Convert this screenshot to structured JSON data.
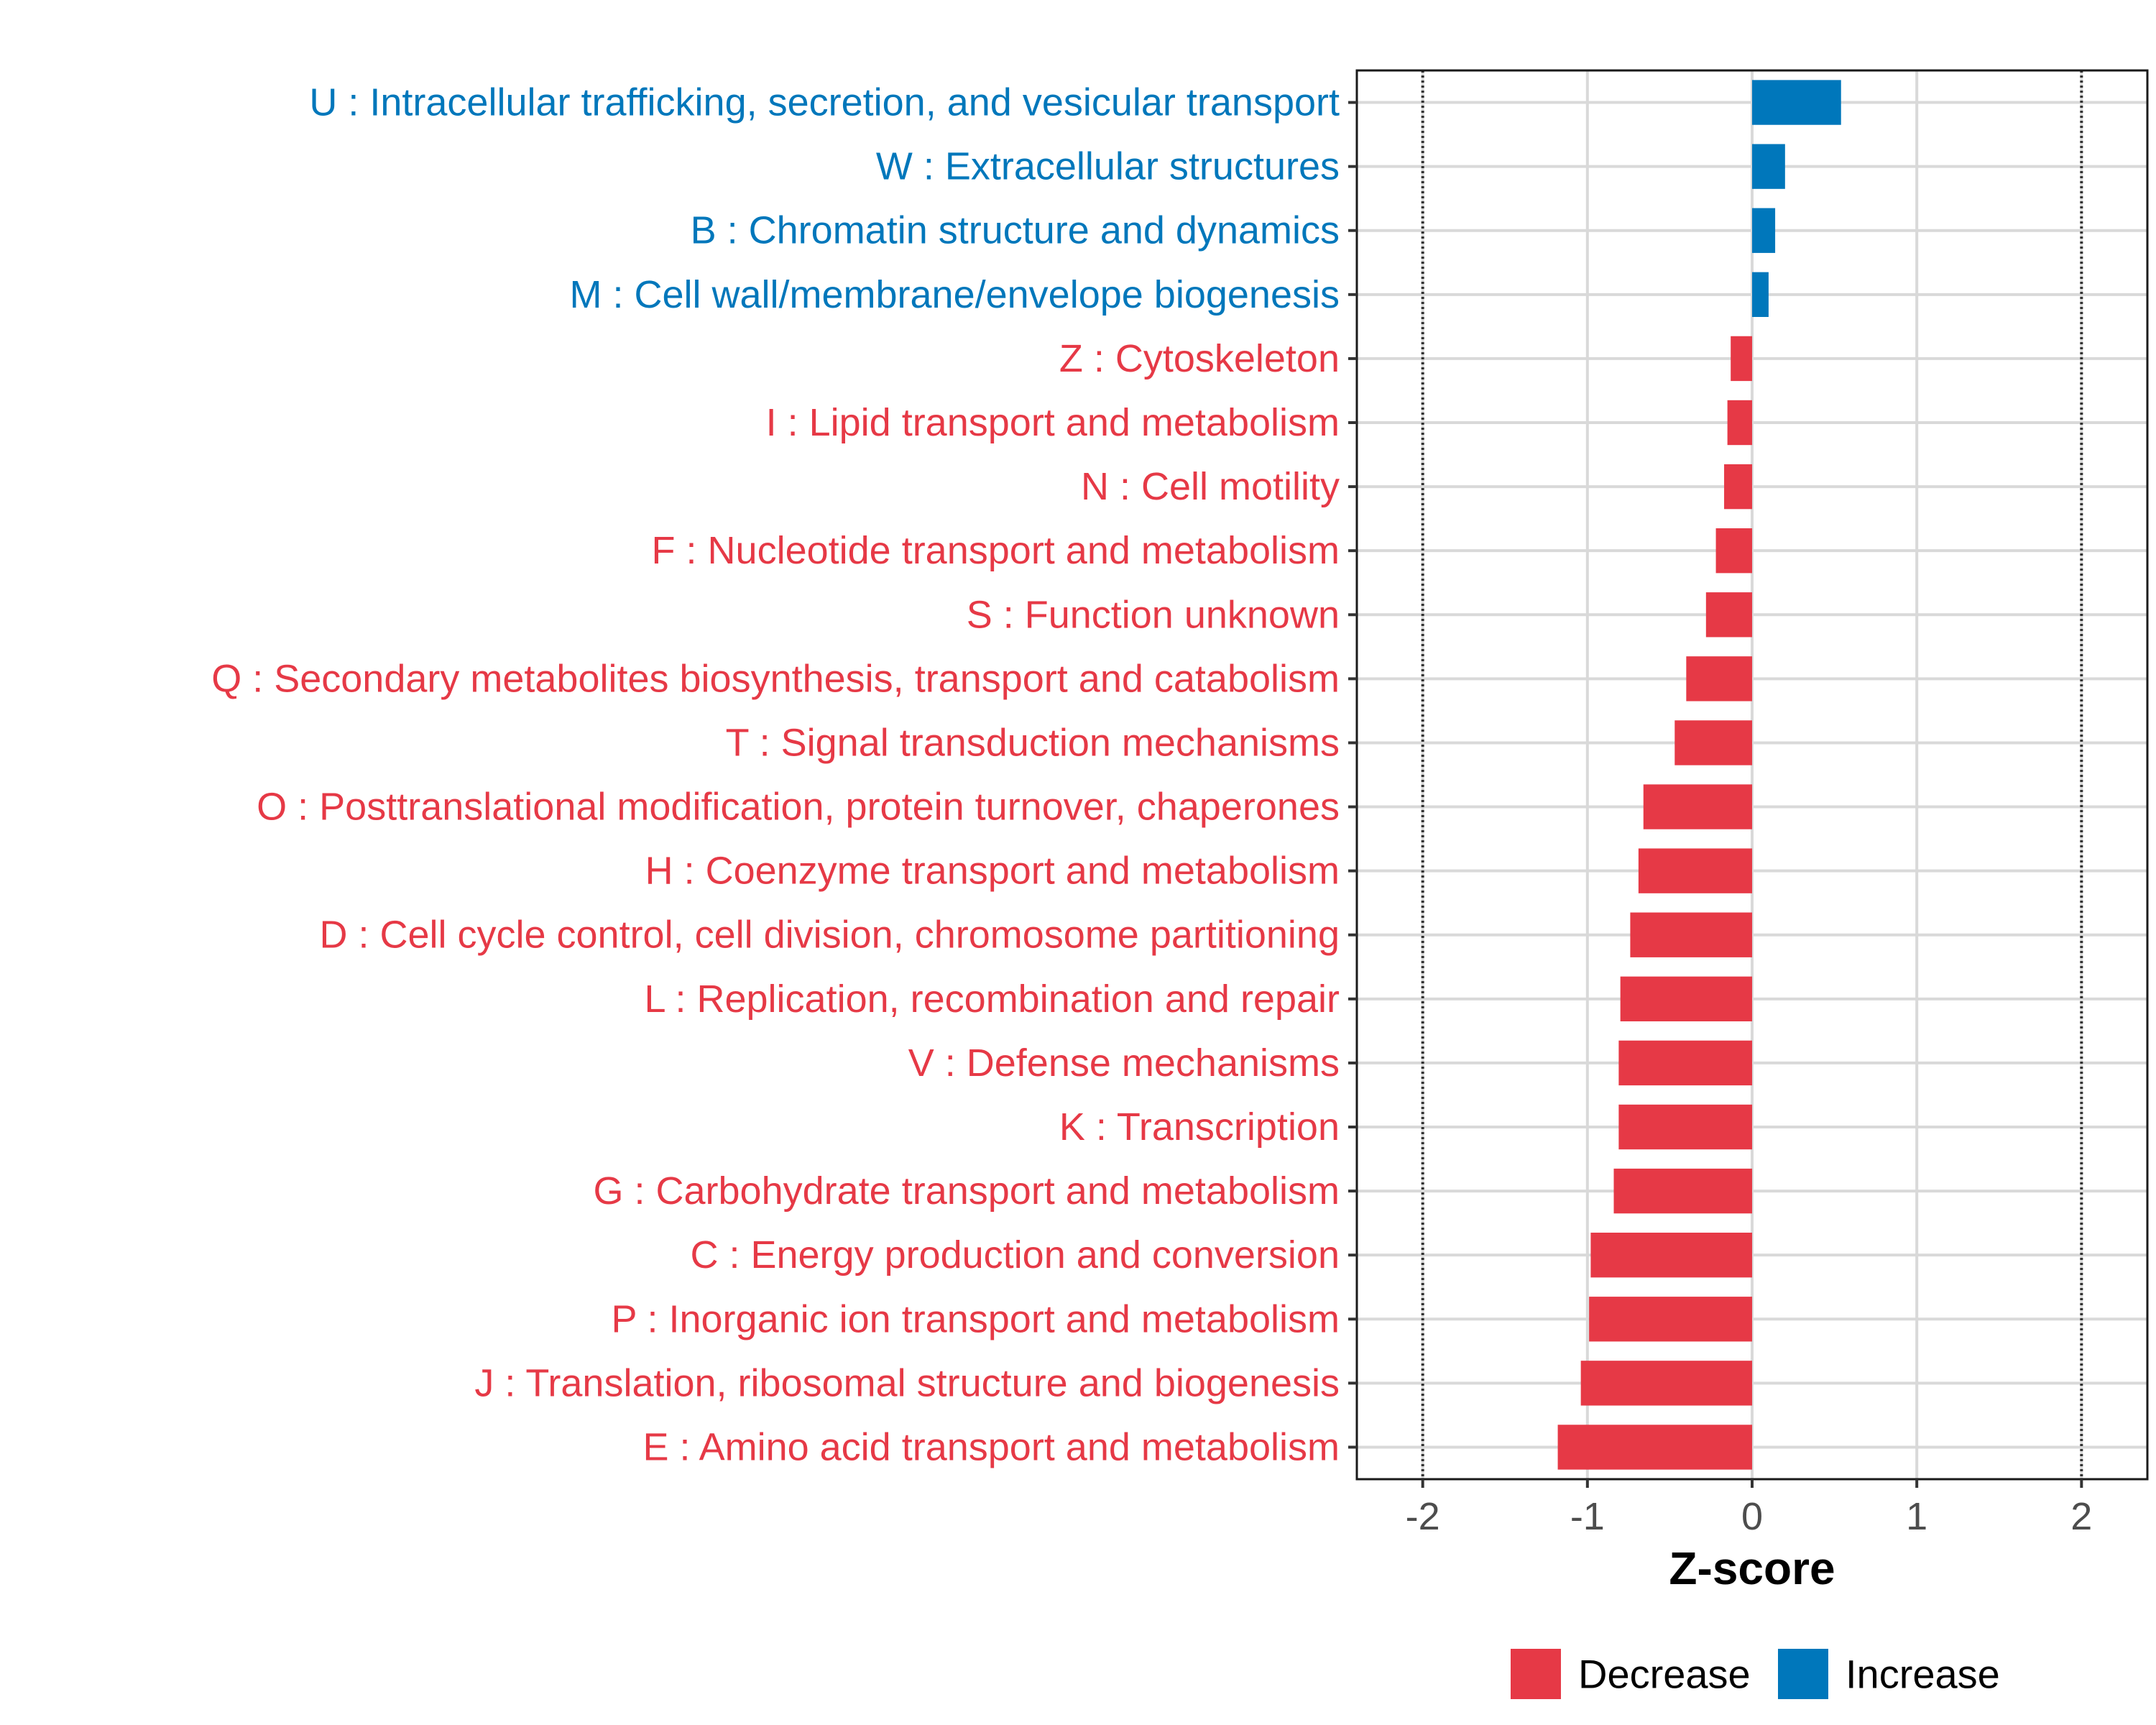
{
  "chart_data": {
    "type": "bar",
    "orientation": "horizontal",
    "xlabel": "Z-score",
    "ylabel": "",
    "xlim": [
      -2.4,
      2.4
    ],
    "xticks": [
      -2,
      -1,
      0,
      1,
      2
    ],
    "xtick_labels": [
      "-2",
      "-1",
      "0",
      "1",
      "2"
    ],
    "reference_lines": [
      -2,
      2
    ],
    "grid": true,
    "legend_position": "bottom",
    "legend": [
      {
        "label": "Decrease",
        "color": "#E63946"
      },
      {
        "label": "Increase",
        "color": "#0077BB"
      }
    ],
    "categories": [
      {
        "label": "U : Intracellular trafficking, secretion, and vesicular transport",
        "value": 0.54,
        "group": "Increase"
      },
      {
        "label": "W : Extracellular structures",
        "value": 0.2,
        "group": "Increase"
      },
      {
        "label": "B : Chromatin structure and dynamics",
        "value": 0.14,
        "group": "Increase"
      },
      {
        "label": "M : Cell wall/membrane/envelope biogenesis",
        "value": 0.1,
        "group": "Increase"
      },
      {
        "label": "Z : Cytoskeleton",
        "value": -0.13,
        "group": "Decrease"
      },
      {
        "label": "I : Lipid transport and metabolism",
        "value": -0.15,
        "group": "Decrease"
      },
      {
        "label": "N : Cell motility",
        "value": -0.17,
        "group": "Decrease"
      },
      {
        "label": "F : Nucleotide transport and metabolism",
        "value": -0.22,
        "group": "Decrease"
      },
      {
        "label": "S : Function unknown",
        "value": -0.28,
        "group": "Decrease"
      },
      {
        "label": "Q : Secondary metabolites biosynthesis, transport and catabolism",
        "value": -0.4,
        "group": "Decrease"
      },
      {
        "label": "T : Signal transduction mechanisms",
        "value": -0.47,
        "group": "Decrease"
      },
      {
        "label": "O : Posttranslational modification, protein turnover, chaperones",
        "value": -0.66,
        "group": "Decrease"
      },
      {
        "label": "H : Coenzyme transport and metabolism",
        "value": -0.69,
        "group": "Decrease"
      },
      {
        "label": "D : Cell cycle control, cell division, chromosome partitioning",
        "value": -0.74,
        "group": "Decrease"
      },
      {
        "label": "L : Replication, recombination and repair",
        "value": -0.8,
        "group": "Decrease"
      },
      {
        "label": "V : Defense mechanisms",
        "value": -0.81,
        "group": "Decrease"
      },
      {
        "label": "K : Transcription",
        "value": -0.81,
        "group": "Decrease"
      },
      {
        "label": "G : Carbohydrate transport and metabolism",
        "value": -0.84,
        "group": "Decrease"
      },
      {
        "label": "C : Energy production and conversion",
        "value": -0.98,
        "group": "Decrease"
      },
      {
        "label": "P : Inorganic ion transport and metabolism",
        "value": -0.99,
        "group": "Decrease"
      },
      {
        "label": "J : Translation, ribosomal structure and biogenesis",
        "value": -1.04,
        "group": "Decrease"
      },
      {
        "label": "E : Amino acid transport and metabolism",
        "value": -1.18,
        "group": "Decrease"
      }
    ]
  }
}
